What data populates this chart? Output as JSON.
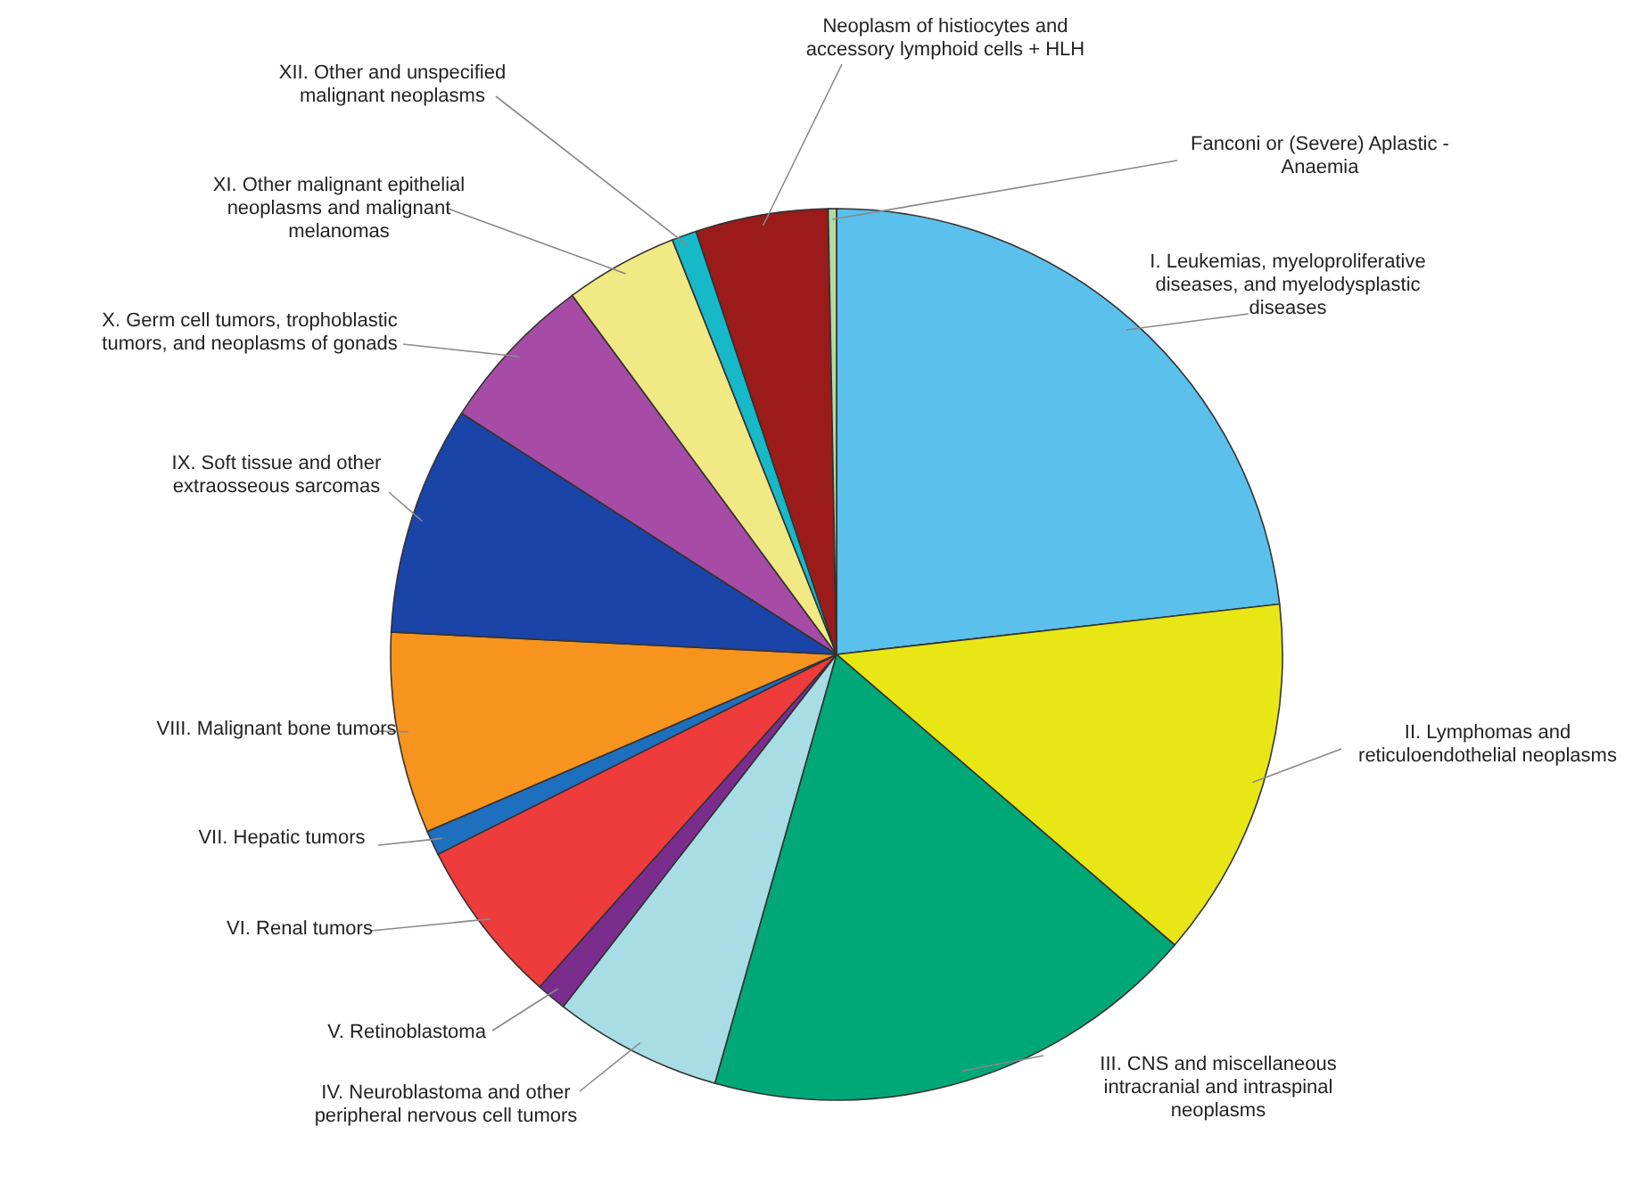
{
  "chart_data": {
    "type": "pie",
    "categories": [
      "I. Leukemias, myeloproliferative diseases, and myelodysplastic diseases",
      "II. Lymphomas and reticuloendothelial neoplasms",
      "III. CNS and miscellaneous intracranial and intraspinal neoplasms",
      "IV. Neuroblastoma and other peripheral nervous cell tumors",
      "V. Retinoblastoma",
      "VI. Renal tumors",
      "VII. Hepatic tumors",
      "VIII. Malignant bone tumors",
      "IX. Soft tissue and other extraosseous sarcomas",
      "X. Germ cell tumors, trophoblastic tumors, and neoplasms of gonads",
      "XI. Other malignant epithelial neoplasms and malignant melanomas",
      "XII. Other and unspecified malignant neoplasms",
      "Neoplasm of histiocytes and accessory lymphoid cells + HLH",
      "Fanconi or (Severe) Aplastic - Anaemia"
    ],
    "values": [
      23.2,
      13.1,
      18.1,
      6.1,
      1.1,
      6.0,
      0.9,
      7.3,
      8.3,
      5.8,
      4.1,
      0.9,
      4.8,
      0.3
    ],
    "colors": [
      "#5bc0eb",
      "#e8e615",
      "#00a878",
      "#a8dde6",
      "#7b2d8e",
      "#ee3b3b",
      "#1f6fbf",
      "#f7941d",
      "#1b44a8",
      "#a64ca6",
      "#f1ea84",
      "#17b8c8",
      "#9b1b1b",
      "#b5dba0"
    ],
    "legend": false
  }
}
